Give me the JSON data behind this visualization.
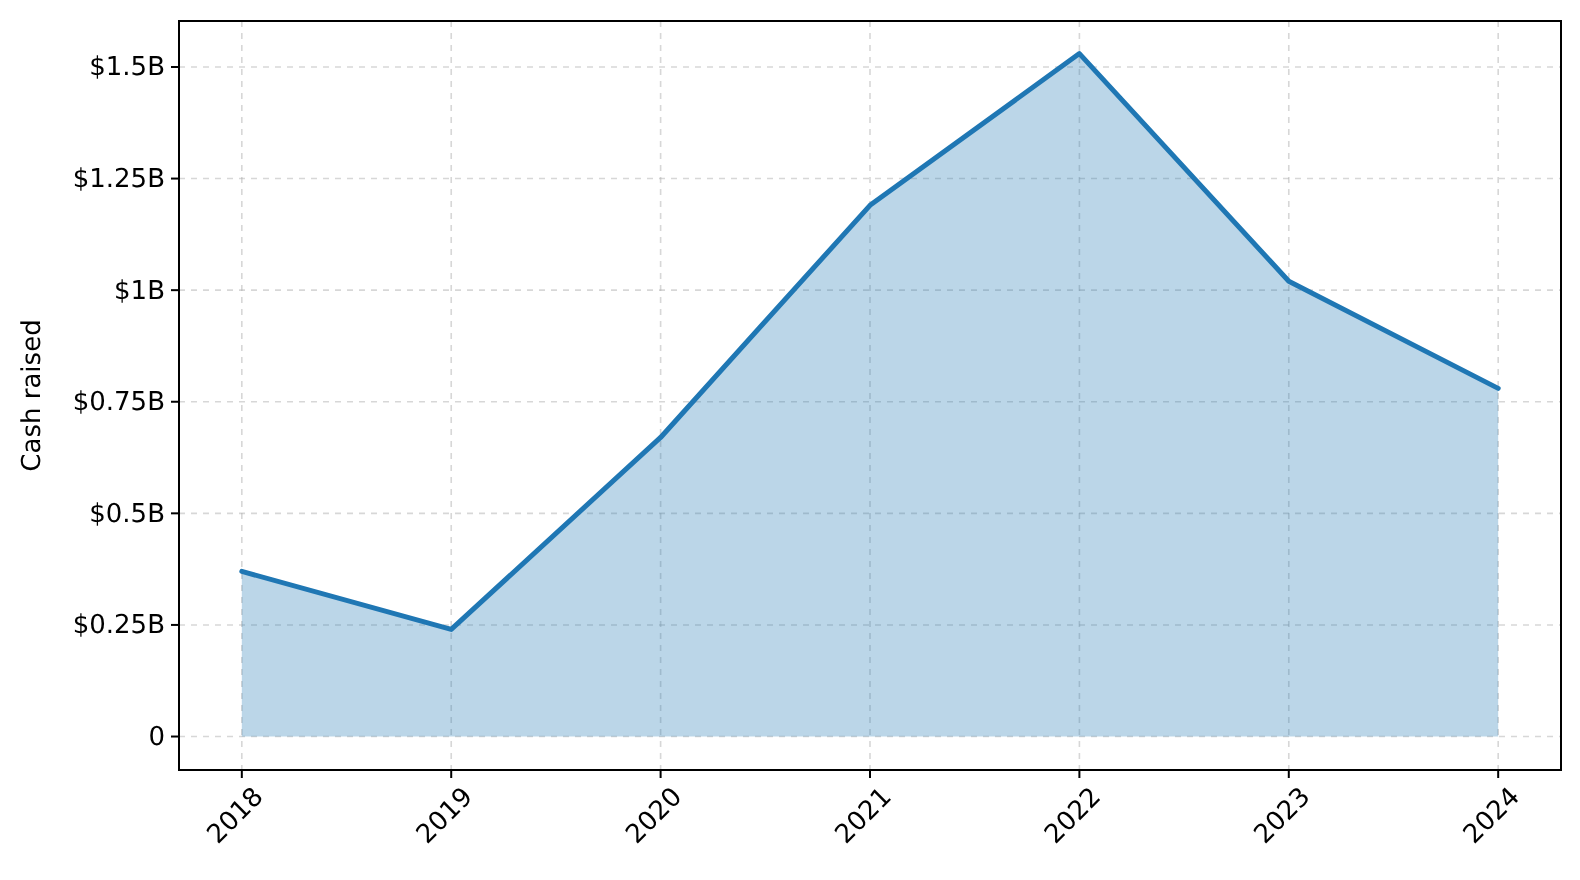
{
  "chart_data": {
    "type": "area",
    "ylabel": "Cash raised",
    "x": [
      2018,
      2019,
      2020,
      2021,
      2022,
      2023,
      2024
    ],
    "series": [
      {
        "color": "#1f77b4",
        "values": [
          0.37,
          0.24,
          0.67,
          1.19,
          1.53,
          1.02,
          0.78
        ]
      }
    ],
    "xlim": [
      2017.7,
      2024.3
    ],
    "xticks": [
      2018,
      2019,
      2020,
      2021,
      2022,
      2023,
      2024
    ],
    "ylim": [
      -0.075,
      1.603
    ],
    "yticks": [
      0,
      {
        "value": 0.25,
        "label": "$0.25B"
      },
      {
        "value": 0.5,
        "label": "$0.5B"
      },
      {
        "value": 0.75,
        "label": "$0.75B"
      },
      {
        "value": 1,
        "label": "$1B"
      },
      {
        "value": 1.25,
        "label": "$1.25B"
      },
      {
        "value": 1.5,
        "label": "$1.5B"
      }
    ],
    "grid": true
  }
}
